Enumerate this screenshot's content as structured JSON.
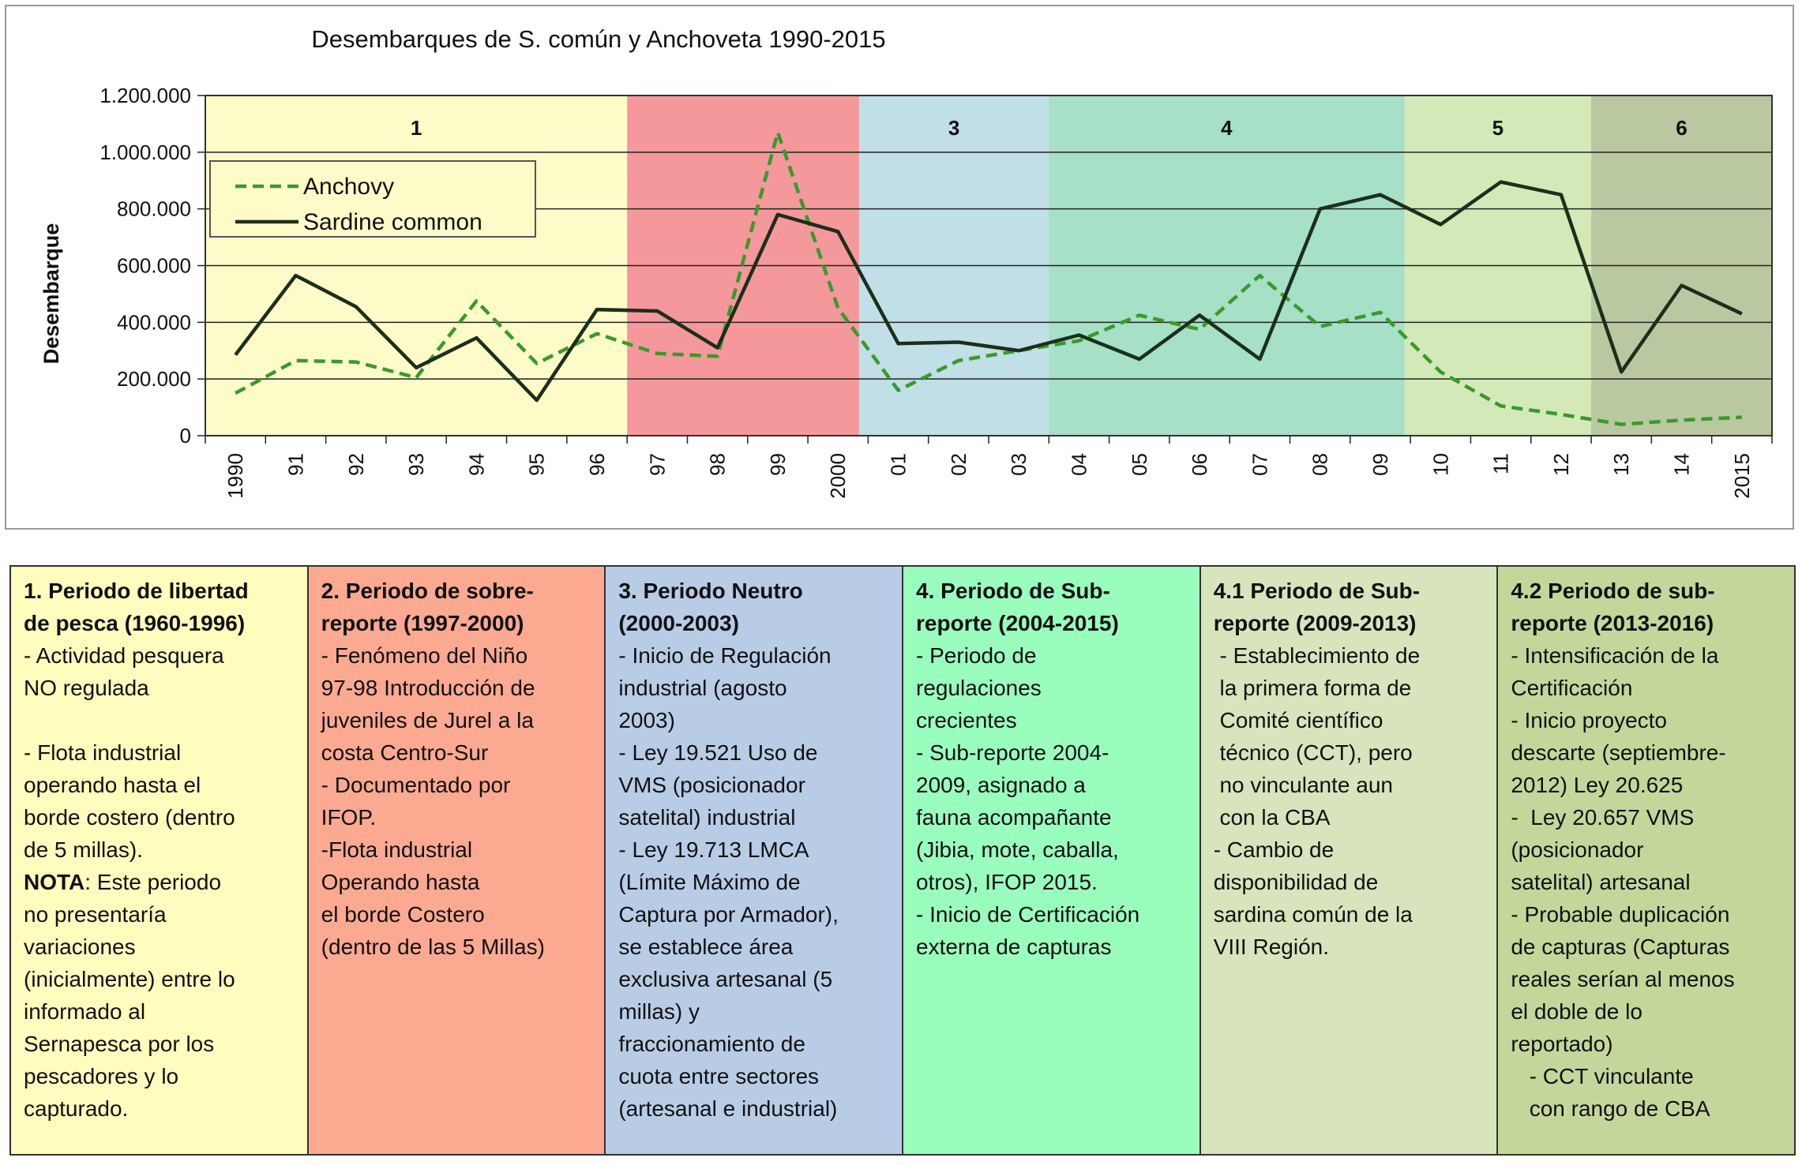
{
  "chart_data": {
    "type": "line",
    "title": "Desembarques de S. común y Anchoveta 1990-2015",
    "ylabel": "Desembarque",
    "xlabel": "",
    "ylim": [
      0,
      1200000
    ],
    "y_ticks": [
      "0",
      "200.000",
      "400.000",
      "600.000",
      "800.000",
      "1.000.000",
      "1.200.000"
    ],
    "y_tick_values": [
      0,
      200000,
      400000,
      600000,
      800000,
      1000000,
      1200000
    ],
    "categories": [
      "1990",
      "91",
      "92",
      "93",
      "94",
      "95",
      "96",
      "97",
      "98",
      "99",
      "2000",
      "01",
      "02",
      "03",
      "04",
      "05",
      "06",
      "07",
      "08",
      "09",
      "10",
      "11",
      "12",
      "13",
      "14",
      "2015"
    ],
    "series": [
      {
        "name": "Anchovy",
        "color": "#3a9a2a",
        "style": "dashed",
        "values": [
          150000,
          265000,
          260000,
          205000,
          475000,
          255000,
          360000,
          290000,
          280000,
          1070000,
          450000,
          160000,
          265000,
          300000,
          335000,
          425000,
          375000,
          565000,
          385000,
          435000,
          225000,
          105000,
          75000,
          40000,
          55000,
          65000
        ]
      },
      {
        "name": "Sardine common",
        "color": "#1c2e1c",
        "style": "solid",
        "values": [
          285000,
          565000,
          455000,
          240000,
          345000,
          125000,
          445000,
          440000,
          310000,
          780000,
          720000,
          325000,
          330000,
          300000,
          355000,
          270000,
          425000,
          270000,
          800000,
          850000,
          745000,
          895000,
          850000,
          225000,
          530000,
          430000
        ]
      }
    ],
    "periods": [
      {
        "label": "1",
        "start": -0.5,
        "end": 6.5,
        "color": "#fdfbc8"
      },
      {
        "label": "",
        "start": 6.5,
        "end": 10.35,
        "color": "#f5989b"
      },
      {
        "label": "3",
        "start": 10.35,
        "end": 13.5,
        "color": "#c0dfe6"
      },
      {
        "label": "4",
        "start": 13.5,
        "end": 19.4,
        "color": "#a6e0c6"
      },
      {
        "label": "5",
        "start": 19.4,
        "end": 22.5,
        "color": "#d4e9b8"
      },
      {
        "label": "6",
        "start": 22.5,
        "end": 25.5,
        "color": "#b9c8a0"
      }
    ],
    "grid": true,
    "legend_position": "top-left"
  },
  "table": {
    "columns": [
      {
        "color": "#fefdbd",
        "title": "1. Periodo de libertad\nde pesca (1960-1996)",
        "body": "- Actividad pesquera\nNO regulada\n\n- Flota industrial\noperando hasta el\nborde costero (dentro\nde 5 millas).",
        "note_label": "NOTA",
        "note_body": ": Este periodo\nno presentaría\nvariaciones\n(inicialmente) entre lo\ninformado al\nSernapesca por los\npescadores y lo\ncapturado."
      },
      {
        "color": "#fba991",
        "title": "2. Periodo de sobre-\nreporte (1997-2000)",
        "body": "- Fenómeno del Niño\n97-98 Introducción de\njuveniles de Jurel a la\ncosta Centro-Sur\n- Documentado por\nIFOP.\n-Flota industrial\nOperando hasta\nel borde Costero\n(dentro de las 5 Millas)"
      },
      {
        "color": "#b9cce6",
        "title": "3. Periodo Neutro\n(2000-2003)",
        "body": "- Inicio de Regulación\nindustrial (agosto\n2003)\n- Ley 19.521 Uso de\nVMS (posicionador\nsatelital) industrial\n- Ley 19.713 LMCA\n(Límite Máximo de\nCaptura por Armador),\nse establece área\nexclusiva artesanal (5\nmillas) y\nfraccionamiento de\ncuota entre sectores\n(artesanal e industrial)"
      },
      {
        "color": "#99fdbe",
        "title": "4. Periodo de Sub-\nreporte (2004-2015)",
        "body": "- Periodo de\nregulaciones\ncrecientes\n- Sub-reporte 2004-\n2009, asignado a\nfauna acompañante\n(Jibia, mote, caballa,\notros), IFOP 2015.\n- Inicio de Certificación\nexterna de capturas"
      },
      {
        "color": "#d8e4bc",
        "title": "4.1 Periodo de Sub-\nreporte (2009-2013)",
        "body": " - Establecimiento de\n la primera forma de\n Comité científico\n técnico (CCT), pero\n no vinculante aun\n con la CBA\n- Cambio de\ndisponibilidad de\nsardina común de la\nVIII Región."
      },
      {
        "color": "#c4d79b",
        "title": "4.2 Periodo de sub-\nreporte (2013-2016)",
        "body": "- Intensificación de la\nCertificación\n- Inicio proyecto\ndescarte (septiembre-\n2012) Ley 20.625\n-  Ley 20.657 VMS\n(posicionador\nsatelital) artesanal\n- Probable duplicación\nde capturas (Capturas\nreales serían al menos\nel doble de lo\nreportado)\n   - CCT vinculante\n   con rango de CBA"
      }
    ]
  }
}
